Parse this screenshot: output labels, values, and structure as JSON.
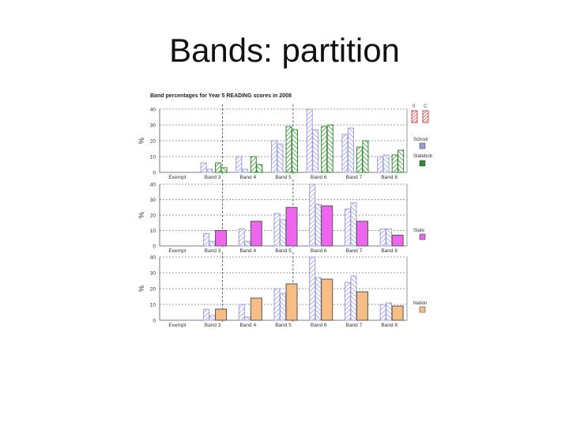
{
  "slide": {
    "title": "Bands: partition"
  },
  "colors": {
    "school": "#9c9ce0",
    "statebob": "#2e8b2e",
    "state": "#ee66ee",
    "nation": "#f8bd85",
    "key_red": "#cc2222"
  },
  "chart_data": {
    "type": "bar",
    "title": "Band percentages for Year 5 READING scores in 2008",
    "ylabel": "%",
    "categories": [
      "Exempt",
      "Band 3",
      "Band 4",
      "Band 5",
      "Band 6",
      "Band 7",
      "Band 8"
    ],
    "category_labels_top": [
      "Exempt",
      "Band 3",
      "Band 4",
      "Band 5",
      "Band 6",
      "Band 7",
      "Band 8"
    ],
    "category_labels_mid": [
      "Exempt",
      "Band 3",
      "Band 4",
      "Band 5",
      "Band 6",
      "Band 7",
      "Band 8"
    ],
    "category_labels_bot": [
      "Exempt",
      "Band 3",
      "Band 4",
      "Band 5",
      "Band 6",
      "Band 7",
      "Band 8"
    ],
    "panel_ytick_labels": {
      "top": [
        "0",
        "10",
        "20",
        "30",
        "40"
      ],
      "mid": [
        "0",
        "10",
        "20",
        "30",
        "40"
      ],
      "bot": [
        "0",
        "10",
        "20",
        "30",
        "40"
      ]
    },
    "key_labels": [
      "0",
      "C"
    ],
    "panels": [
      {
        "name": "top",
        "ylim": [
          0,
          40
        ],
        "school_a": [
          0,
          6,
          10,
          20,
          40,
          24,
          10
        ],
        "school_b": [
          0,
          2,
          2,
          18,
          27,
          28,
          11
        ],
        "compare_a": [
          0,
          6,
          10,
          29,
          29,
          16,
          11
        ],
        "compare_b": [
          0,
          3,
          5,
          27,
          30,
          20,
          14
        ],
        "compare_hatched": true,
        "compare_color": "statebob",
        "legend": [
          "School",
          "Statebob"
        ]
      },
      {
        "name": "mid",
        "ylim": [
          0,
          40
        ],
        "school_a": [
          0,
          8,
          11,
          21,
          40,
          24,
          11
        ],
        "school_b": [
          0,
          3,
          3,
          17,
          27,
          28,
          11
        ],
        "compare": [
          0,
          10,
          16,
          25,
          26,
          16,
          7
        ],
        "compare_color": "state",
        "legend": [
          "State"
        ]
      },
      {
        "name": "bot",
        "ylim": [
          0,
          40
        ],
        "school_a": [
          0,
          7,
          10,
          20,
          40,
          24,
          10
        ],
        "school_b": [
          0,
          3,
          2,
          17,
          27,
          28,
          11
        ],
        "compare": [
          0,
          7,
          14,
          23,
          26,
          18,
          9
        ],
        "compare_color": "nation",
        "legend": [
          "Nation"
        ]
      }
    ]
  }
}
